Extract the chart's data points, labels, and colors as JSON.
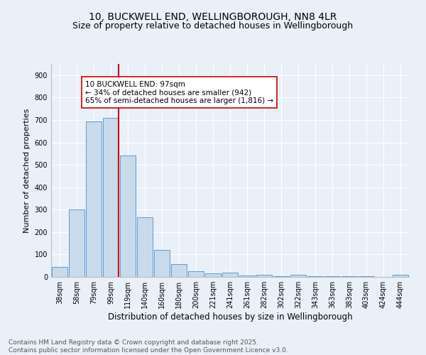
{
  "title1": "10, BUCKWELL END, WELLINGBOROUGH, NN8 4LR",
  "title2": "Size of property relative to detached houses in Wellingborough",
  "xlabel": "Distribution of detached houses by size in Wellingborough",
  "ylabel": "Number of detached properties",
  "categories": [
    "38sqm",
    "58sqm",
    "79sqm",
    "99sqm",
    "119sqm",
    "140sqm",
    "160sqm",
    "180sqm",
    "200sqm",
    "221sqm",
    "241sqm",
    "261sqm",
    "282sqm",
    "302sqm",
    "322sqm",
    "343sqm",
    "363sqm",
    "383sqm",
    "403sqm",
    "424sqm",
    "444sqm"
  ],
  "values": [
    45,
    300,
    695,
    710,
    540,
    265,
    120,
    58,
    25,
    15,
    18,
    5,
    10,
    4,
    10,
    3,
    3,
    3,
    2,
    1,
    8
  ],
  "bar_color": "#c9daea",
  "bar_edge_color": "#5b9bd5",
  "vline_x_index": 3,
  "vline_color": "#cc0000",
  "annotation_text": "10 BUCKWELL END: 97sqm\n← 34% of detached houses are smaller (942)\n65% of semi-detached houses are larger (1,816) →",
  "annotation_box_color": "#ffffff",
  "annotation_box_edge": "#cc0000",
  "ylim": [
    0,
    950
  ],
  "yticks": [
    0,
    100,
    200,
    300,
    400,
    500,
    600,
    700,
    800,
    900
  ],
  "bg_color": "#eaf0f8",
  "grid_color": "#ffffff",
  "footer": "Contains HM Land Registry data © Crown copyright and database right 2025.\nContains public sector information licensed under the Open Government Licence v3.0.",
  "title1_fontsize": 10,
  "title2_fontsize": 9,
  "xlabel_fontsize": 8.5,
  "ylabel_fontsize": 8,
  "tick_fontsize": 7,
  "footer_fontsize": 6.5,
  "annot_fontsize": 7.5
}
